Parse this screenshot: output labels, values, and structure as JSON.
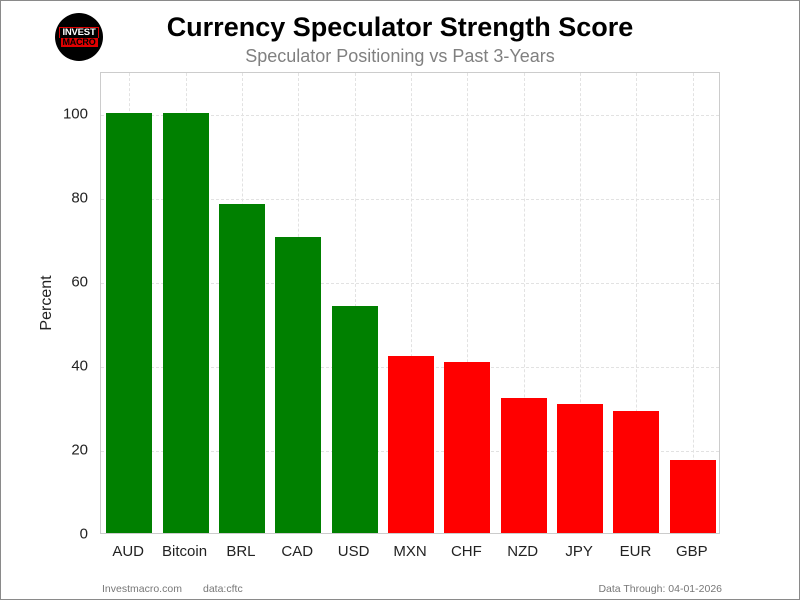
{
  "header": {
    "logo_line1": "INVEST",
    "logo_line2": "MACRO",
    "title": "Currency Speculator Strength Score",
    "subtitle": "Speculator Positioning vs Past 3-Years"
  },
  "footer": {
    "source_site": "Investmacro.com",
    "data_source": "data:cftc",
    "data_through": "Data Through: 04-01-2026"
  },
  "colors": {
    "positive": "#008000",
    "negative": "#ff0000",
    "threshold": 50
  },
  "chart_data": {
    "type": "bar",
    "title": "Currency Speculator Strength Score",
    "subtitle": "Speculator Positioning vs Past 3-Years",
    "xlabel": "",
    "ylabel": "Percent",
    "ylim": [
      0,
      110
    ],
    "yticks": [
      0,
      20,
      40,
      60,
      80,
      100
    ],
    "grid": true,
    "legend": null,
    "categories": [
      "AUD",
      "Bitcoin",
      "BRL",
      "CAD",
      "USD",
      "MXN",
      "CHF",
      "NZD",
      "JPY",
      "EUR",
      "GBP"
    ],
    "values": [
      100,
      100,
      78.4,
      70.5,
      54.1,
      42.1,
      40.6,
      32.2,
      30.8,
      29.1,
      17.3
    ],
    "bar_colors": [
      "#008000",
      "#008000",
      "#008000",
      "#008000",
      "#008000",
      "#ff0000",
      "#ff0000",
      "#ff0000",
      "#ff0000",
      "#ff0000",
      "#ff0000"
    ]
  }
}
